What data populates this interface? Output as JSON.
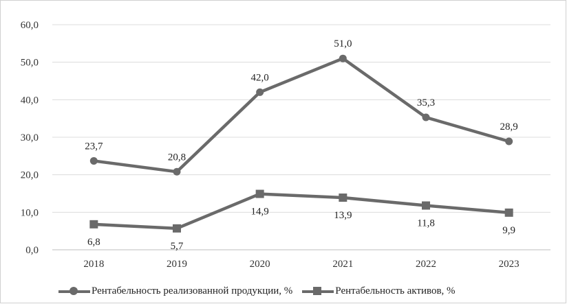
{
  "chart_data": {
    "type": "line",
    "title": "",
    "xlabel": "",
    "ylabel": "",
    "categories": [
      "2018",
      "2019",
      "2020",
      "2021",
      "2022",
      "2023"
    ],
    "ylim": [
      0,
      60
    ],
    "yticks": [
      "0,0",
      "10,0",
      "20,0",
      "30,0",
      "40,0",
      "50,0",
      "60,0"
    ],
    "grid": true,
    "legend_position": "bottom",
    "series": [
      {
        "name": "Рентабельность реализованной продукции, %",
        "marker": "circle",
        "color": "#6a6a6a",
        "values": [
          23.7,
          20.8,
          42.0,
          51.0,
          35.3,
          28.9
        ],
        "labels": [
          "23,7",
          "20,8",
          "42,0",
          "51,0",
          "35,3",
          "28,9"
        ],
        "label_side": "above"
      },
      {
        "name": "Рентабельность активов, %",
        "marker": "square",
        "color": "#6a6a6a",
        "values": [
          6.8,
          5.7,
          14.9,
          13.9,
          11.8,
          9.9
        ],
        "labels": [
          "6,8",
          "5,7",
          "14,9",
          "13,9",
          "11,8",
          "9,9"
        ],
        "label_side": "below"
      }
    ]
  }
}
